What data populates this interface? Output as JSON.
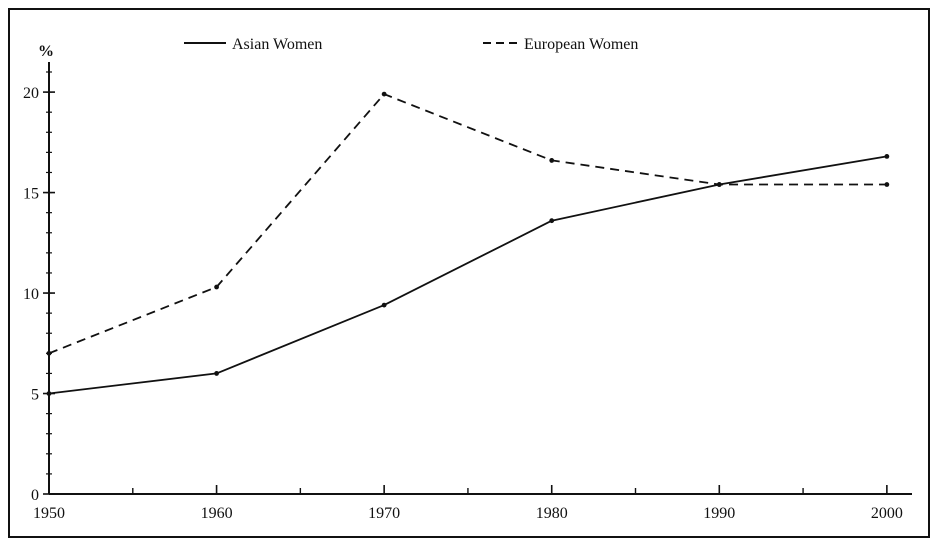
{
  "chart_data": {
    "type": "line",
    "title": "",
    "xlabel": "",
    "ylabel": "%",
    "x": [
      1950,
      1960,
      1970,
      1980,
      1990,
      2000
    ],
    "x_tick_labels": [
      "1950",
      "1960",
      "1970",
      "1980",
      "1990",
      "2000"
    ],
    "y_tick_values": [
      0,
      5,
      10,
      15,
      20
    ],
    "y_tick_labels": [
      "0",
      "5",
      "10",
      "15",
      "20"
    ],
    "xlim": [
      1950,
      2001.5
    ],
    "ylim": [
      0,
      21
    ],
    "grid": false,
    "legend_position": "top",
    "series": [
      {
        "name": "Asian Women",
        "style": "solid",
        "color": "#111111",
        "x": [
          1950,
          1960,
          1970,
          1980,
          1990,
          2000
        ],
        "values": [
          5.0,
          6.0,
          9.4,
          13.6,
          15.4,
          16.8
        ]
      },
      {
        "name": "European Women",
        "style": "dashed",
        "color": "#111111",
        "x": [
          1950,
          1960,
          1970,
          1980,
          1990,
          2000
        ],
        "values": [
          7.0,
          10.3,
          19.9,
          16.6,
          15.4,
          15.4
        ]
      }
    ]
  }
}
